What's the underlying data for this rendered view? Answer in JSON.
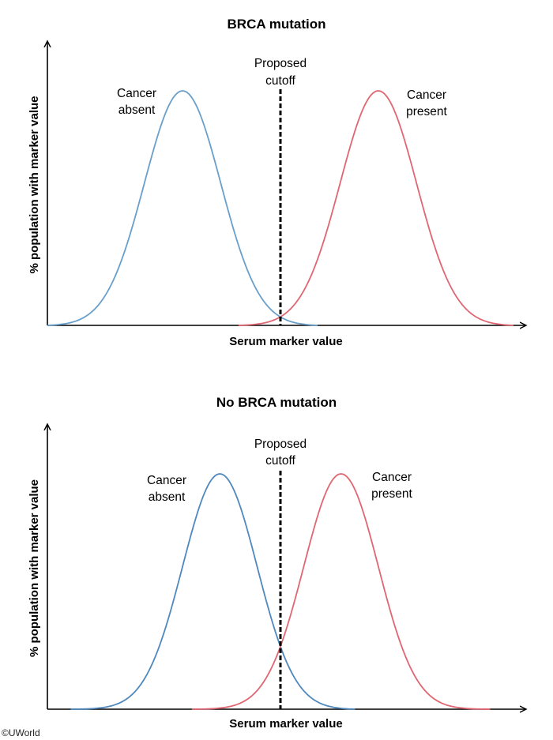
{
  "credit": "©UWorld",
  "colors": {
    "absent": "#6a9fca",
    "absent_dark": "#4f88bd",
    "present": "#e06672",
    "axis": "#000000",
    "cutoff": "#000000"
  },
  "chart_data": [
    {
      "type": "line",
      "title": "BRCA mutation",
      "xlabel": "Serum marker value",
      "ylabel": "% population with marker value",
      "xlim": [
        0,
        100
      ],
      "ylim": [
        0,
        100
      ],
      "cutoff": {
        "x": 50,
        "label_line1": "Proposed",
        "label_line2": "cutoff"
      },
      "series": [
        {
          "name_line1": "Cancer",
          "name_line2": "absent",
          "color_key": "absent",
          "mean": 29,
          "sd": 8.2,
          "start": 0,
          "end": 58,
          "peak": 100
        },
        {
          "name_line1": "Cancer",
          "name_line2": "present",
          "color_key": "present",
          "mean": 71,
          "sd": 8.2,
          "start": 41,
          "end": 100,
          "peak": 100
        }
      ]
    },
    {
      "type": "line",
      "title": "No BRCA mutation",
      "xlabel": "Serum marker value",
      "ylabel": "% population with marker value",
      "xlim": [
        0,
        100
      ],
      "ylim": [
        0,
        100
      ],
      "cutoff": {
        "x": 50,
        "label_line1": "Proposed",
        "label_line2": "cutoff"
      },
      "series": [
        {
          "name_line1": "Cancer",
          "name_line2": "absent",
          "color_key": "absent_dark",
          "mean": 37,
          "sd": 8.0,
          "start": 5,
          "end": 66,
          "peak": 100
        },
        {
          "name_line1": "Cancer",
          "name_line2": "present",
          "color_key": "present",
          "mean": 63,
          "sd": 8.0,
          "start": 31,
          "end": 95,
          "peak": 100
        }
      ]
    }
  ]
}
